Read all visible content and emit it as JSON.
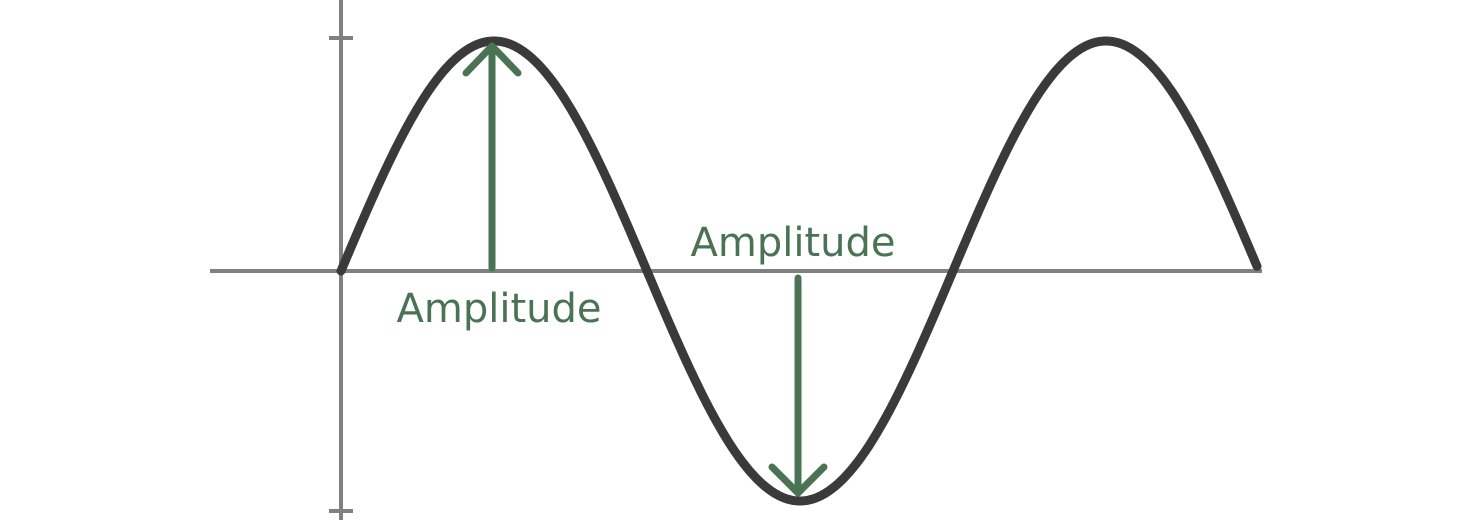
{
  "colors": {
    "background": "#ffffff",
    "axis": "#808080",
    "curve": "#3a3a3a",
    "annotation": "#4a7354"
  },
  "annotations": {
    "amplitude_up_label": "Amplitude",
    "amplitude_down_label": "Amplitude"
  }
}
